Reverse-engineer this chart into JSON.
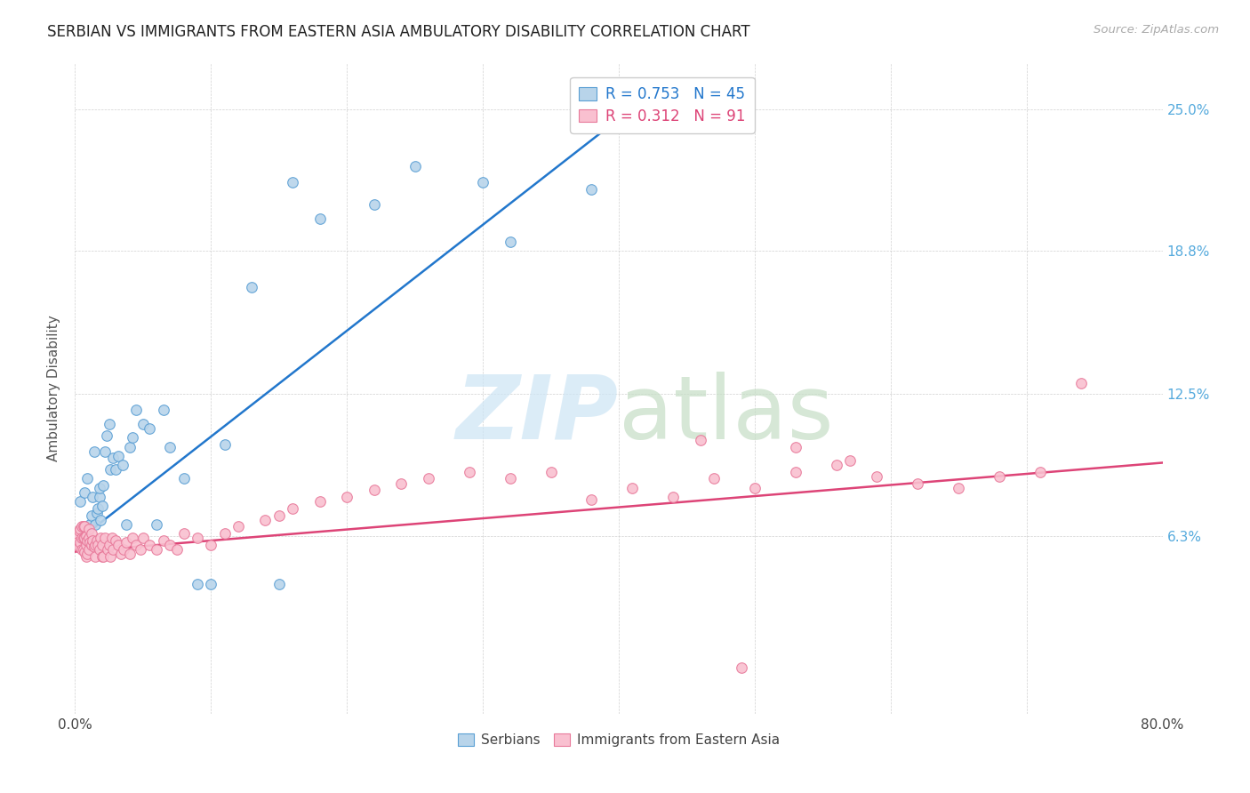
{
  "title": "SERBIAN VS IMMIGRANTS FROM EASTERN ASIA AMBULATORY DISABILITY CORRELATION CHART",
  "source": "Source: ZipAtlas.com",
  "ylabel_label": "Ambulatory Disability",
  "ylabel_ticks": [
    "6.3%",
    "12.5%",
    "18.8%",
    "25.0%"
  ],
  "ylabel_values": [
    0.063,
    0.125,
    0.188,
    0.25
  ],
  "xlim": [
    0.0,
    0.8
  ],
  "ylim": [
    -0.015,
    0.27
  ],
  "x_tick_positions": [
    0.0,
    0.1,
    0.2,
    0.3,
    0.4,
    0.5,
    0.6,
    0.7,
    0.8
  ],
  "x_tick_labels": [
    "0.0%",
    "",
    "",
    "",
    "",
    "",
    "",
    "",
    "80.0%"
  ],
  "blue_face": "#b8d4ea",
  "blue_edge": "#5a9fd4",
  "pink_face": "#f9c0d0",
  "pink_edge": "#e8799a",
  "blue_line_color": "#2277cc",
  "pink_line_color": "#dd4477",
  "right_tick_color": "#55aadd",
  "watermark_zip_color": "#cde5f5",
  "watermark_atlas_color": "#c5ddc5",
  "blue_line_x": [
    0.0,
    0.42
  ],
  "blue_line_y": [
    0.06,
    0.255
  ],
  "pink_line_x": [
    0.0,
    0.8
  ],
  "pink_line_y": [
    0.056,
    0.095
  ],
  "legend_r_blue": "R = 0.753",
  "legend_n_blue": "N = 45",
  "legend_r_pink": "R = 0.312",
  "legend_n_pink": "N = 91",
  "legend_label_blue": "Serbians",
  "legend_label_pink": "Immigrants from Eastern Asia",
  "serbians_x": [
    0.004,
    0.007,
    0.009,
    0.011,
    0.012,
    0.013,
    0.014,
    0.015,
    0.016,
    0.017,
    0.018,
    0.018,
    0.019,
    0.02,
    0.021,
    0.022,
    0.023,
    0.025,
    0.026,
    0.028,
    0.03,
    0.032,
    0.035,
    0.038,
    0.04,
    0.042,
    0.045,
    0.05,
    0.055,
    0.06,
    0.065,
    0.07,
    0.08,
    0.09,
    0.1,
    0.11,
    0.13,
    0.15,
    0.16,
    0.18,
    0.22,
    0.25,
    0.3,
    0.32,
    0.38
  ],
  "serbians_y": [
    0.078,
    0.082,
    0.088,
    0.068,
    0.072,
    0.08,
    0.1,
    0.068,
    0.073,
    0.075,
    0.08,
    0.084,
    0.07,
    0.076,
    0.085,
    0.1,
    0.107,
    0.112,
    0.092,
    0.097,
    0.092,
    0.098,
    0.094,
    0.068,
    0.102,
    0.106,
    0.118,
    0.112,
    0.11,
    0.068,
    0.118,
    0.102,
    0.088,
    0.042,
    0.042,
    0.103,
    0.172,
    0.042,
    0.218,
    0.202,
    0.208,
    0.225,
    0.218,
    0.192,
    0.215
  ],
  "immigrants_x": [
    0.002,
    0.002,
    0.003,
    0.003,
    0.004,
    0.004,
    0.005,
    0.005,
    0.005,
    0.006,
    0.006,
    0.006,
    0.007,
    0.007,
    0.007,
    0.008,
    0.008,
    0.008,
    0.009,
    0.009,
    0.01,
    0.01,
    0.01,
    0.011,
    0.012,
    0.012,
    0.013,
    0.014,
    0.015,
    0.015,
    0.016,
    0.017,
    0.018,
    0.019,
    0.02,
    0.02,
    0.021,
    0.022,
    0.024,
    0.025,
    0.026,
    0.027,
    0.028,
    0.03,
    0.032,
    0.034,
    0.036,
    0.038,
    0.04,
    0.042,
    0.045,
    0.048,
    0.05,
    0.055,
    0.06,
    0.065,
    0.07,
    0.075,
    0.08,
    0.09,
    0.1,
    0.11,
    0.12,
    0.14,
    0.15,
    0.16,
    0.18,
    0.2,
    0.22,
    0.24,
    0.26,
    0.29,
    0.32,
    0.35,
    0.38,
    0.41,
    0.44,
    0.47,
    0.5,
    0.53,
    0.56,
    0.59,
    0.62,
    0.65,
    0.68,
    0.71,
    0.74,
    0.49,
    0.46,
    0.53,
    0.57
  ],
  "immigrants_y": [
    0.063,
    0.06,
    0.058,
    0.065,
    0.06,
    0.066,
    0.057,
    0.062,
    0.067,
    0.057,
    0.062,
    0.067,
    0.056,
    0.062,
    0.067,
    0.054,
    0.059,
    0.063,
    0.055,
    0.061,
    0.057,
    0.062,
    0.066,
    0.06,
    0.059,
    0.064,
    0.061,
    0.058,
    0.054,
    0.059,
    0.061,
    0.059,
    0.057,
    0.062,
    0.054,
    0.059,
    0.054,
    0.062,
    0.057,
    0.059,
    0.054,
    0.062,
    0.057,
    0.061,
    0.059,
    0.055,
    0.057,
    0.06,
    0.055,
    0.062,
    0.059,
    0.057,
    0.062,
    0.059,
    0.057,
    0.061,
    0.059,
    0.057,
    0.064,
    0.062,
    0.059,
    0.064,
    0.067,
    0.07,
    0.072,
    0.075,
    0.078,
    0.08,
    0.083,
    0.086,
    0.088,
    0.091,
    0.088,
    0.091,
    0.079,
    0.084,
    0.08,
    0.088,
    0.084,
    0.091,
    0.094,
    0.089,
    0.086,
    0.084,
    0.089,
    0.091,
    0.13,
    0.005,
    0.105,
    0.102,
    0.096
  ]
}
